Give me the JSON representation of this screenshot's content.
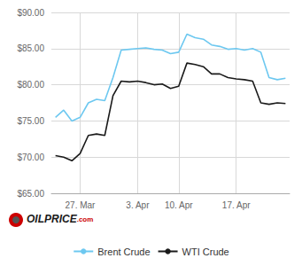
{
  "chart_data": {
    "type": "line",
    "categories": [
      null,
      null,
      null,
      "27. Mar",
      null,
      null,
      null,
      null,
      null,
      null,
      "3. Apr",
      null,
      null,
      null,
      null,
      "10. Apr",
      null,
      null,
      null,
      null,
      null,
      null,
      "17. Apr",
      null,
      null,
      null,
      null,
      null,
      null
    ],
    "series": [
      {
        "name": "Brent Crude",
        "color": "#6DC8F0",
        "values": [
          75.5,
          76.5,
          75.0,
          75.5,
          77.5,
          78.0,
          77.8,
          81.0,
          84.8,
          84.9,
          85.0,
          85.1,
          84.9,
          84.8,
          84.3,
          84.5,
          87.0,
          86.5,
          86.3,
          85.5,
          85.3,
          84.9,
          85.0,
          84.8,
          85.0,
          84.5,
          81.0,
          80.7,
          80.9
        ]
      },
      {
        "name": "WTI Crude",
        "color": "#1a1a1a",
        "values": [
          70.2,
          70.0,
          69.5,
          70.5,
          73.0,
          73.2,
          73.0,
          78.5,
          80.5,
          80.4,
          80.5,
          80.3,
          80.0,
          80.1,
          79.5,
          79.8,
          83.0,
          82.8,
          82.5,
          81.5,
          81.5,
          81.0,
          80.8,
          80.7,
          80.5,
          77.5,
          77.3,
          77.5,
          77.4
        ]
      }
    ],
    "ylim": [
      65.0,
      90.0
    ],
    "yticks": [
      {
        "value": 65.0,
        "label": "$65.00"
      },
      {
        "value": 70.0,
        "label": "$70.00"
      },
      {
        "value": 75.0,
        "label": "$75.00"
      },
      {
        "value": 80.0,
        "label": "$80.00"
      },
      {
        "value": 85.0,
        "label": "$85.00"
      },
      {
        "value": 90.0,
        "label": "$90.00"
      }
    ],
    "grid": true,
    "legend": "bottom",
    "annotations": [
      "OILPRICE",
      ".com"
    ]
  }
}
